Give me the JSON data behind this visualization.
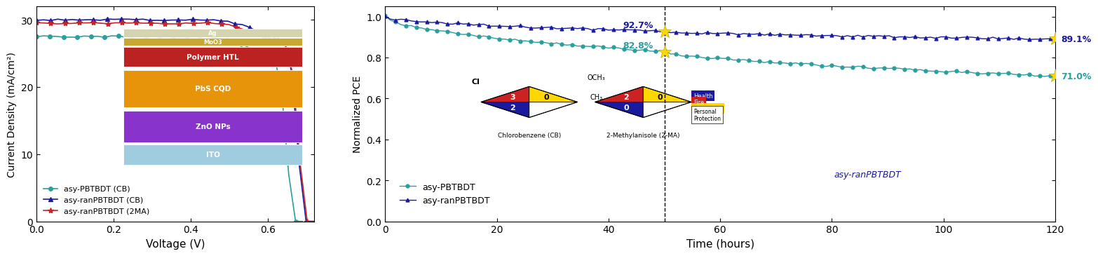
{
  "left_plot": {
    "xlabel": "Voltage (V)",
    "ylabel": "Current Density (mA/cm²)",
    "xlim": [
      0.0,
      0.72
    ],
    "ylim": [
      0,
      32
    ],
    "yticks": [
      0,
      10,
      20,
      30
    ],
    "xticks": [
      0.0,
      0.2,
      0.4,
      0.6
    ],
    "series": [
      {
        "label": "asy-PBTBDT (CB)",
        "color": "#2b9e9e",
        "marker": "o",
        "jsc": 27.5,
        "voc": 0.627
      },
      {
        "label": "asy-ranPBTBDT (CB)",
        "color": "#1a1a9e",
        "marker": "^",
        "jsc": 30.0,
        "voc": 0.655
      },
      {
        "label": "asy-ranPBTBDT (2MA)",
        "color": "#cc2222",
        "marker": "*",
        "jsc": 29.5,
        "voc": 0.658
      }
    ]
  },
  "right_plot": {
    "xlabel": "Time (hours)",
    "ylabel": "Normalized PCE",
    "xlim": [
      0,
      120
    ],
    "ylim": [
      0.0,
      1.05
    ],
    "yticks": [
      0.0,
      0.2,
      0.4,
      0.6,
      0.8,
      1.0
    ],
    "xticks": [
      0,
      20,
      40,
      60,
      80,
      100,
      120
    ],
    "dashed_x": 50,
    "series": [
      {
        "label": "asy-PBTBDT",
        "color": "#2b9e9e",
        "marker": "o",
        "end_val_left": 0.828,
        "end_val_right": 0.71,
        "label_left": "82.8%",
        "label_right": "71.0%"
      },
      {
        "label": "asy-ranPBTBDT",
        "color": "#1a1a9e",
        "marker": "^",
        "end_val_left": 0.927,
        "end_val_right": 0.891,
        "label_left": "92.7%",
        "label_right": "89.1%"
      }
    ]
  },
  "device_layers": [
    {
      "name": "Ag",
      "color": "#d4d4b0",
      "height": 0.07
    },
    {
      "name": "MoO3",
      "color": "#c8a830",
      "height": 0.06
    },
    {
      "name": "Polymer HTL",
      "color": "#bb2222",
      "height": 0.16
    },
    {
      "name": "PbS CQD",
      "color": "#e8940a",
      "height": 0.3
    },
    {
      "name": "ZnO NPs",
      "color": "#8833cc",
      "height": 0.25
    },
    {
      "name": "ITO",
      "color": "#a0cce0",
      "height": 0.16
    }
  ],
  "nfpa_cb": {
    "top_color": "#cc2222",
    "top_text": "3",
    "left_color": "#1a1a9e",
    "left_text": "2",
    "right_color": "#FFD700",
    "right_text": "0",
    "bottom_color": "white",
    "bottom_text": ""
  },
  "nfpa_2ma": {
    "top_color": "#cc2222",
    "top_text": "2",
    "left_color": "#1a1a9e",
    "left_text": "0",
    "right_color": "#FFD700",
    "right_text": "0",
    "bottom_color": "white",
    "bottom_text": ""
  }
}
